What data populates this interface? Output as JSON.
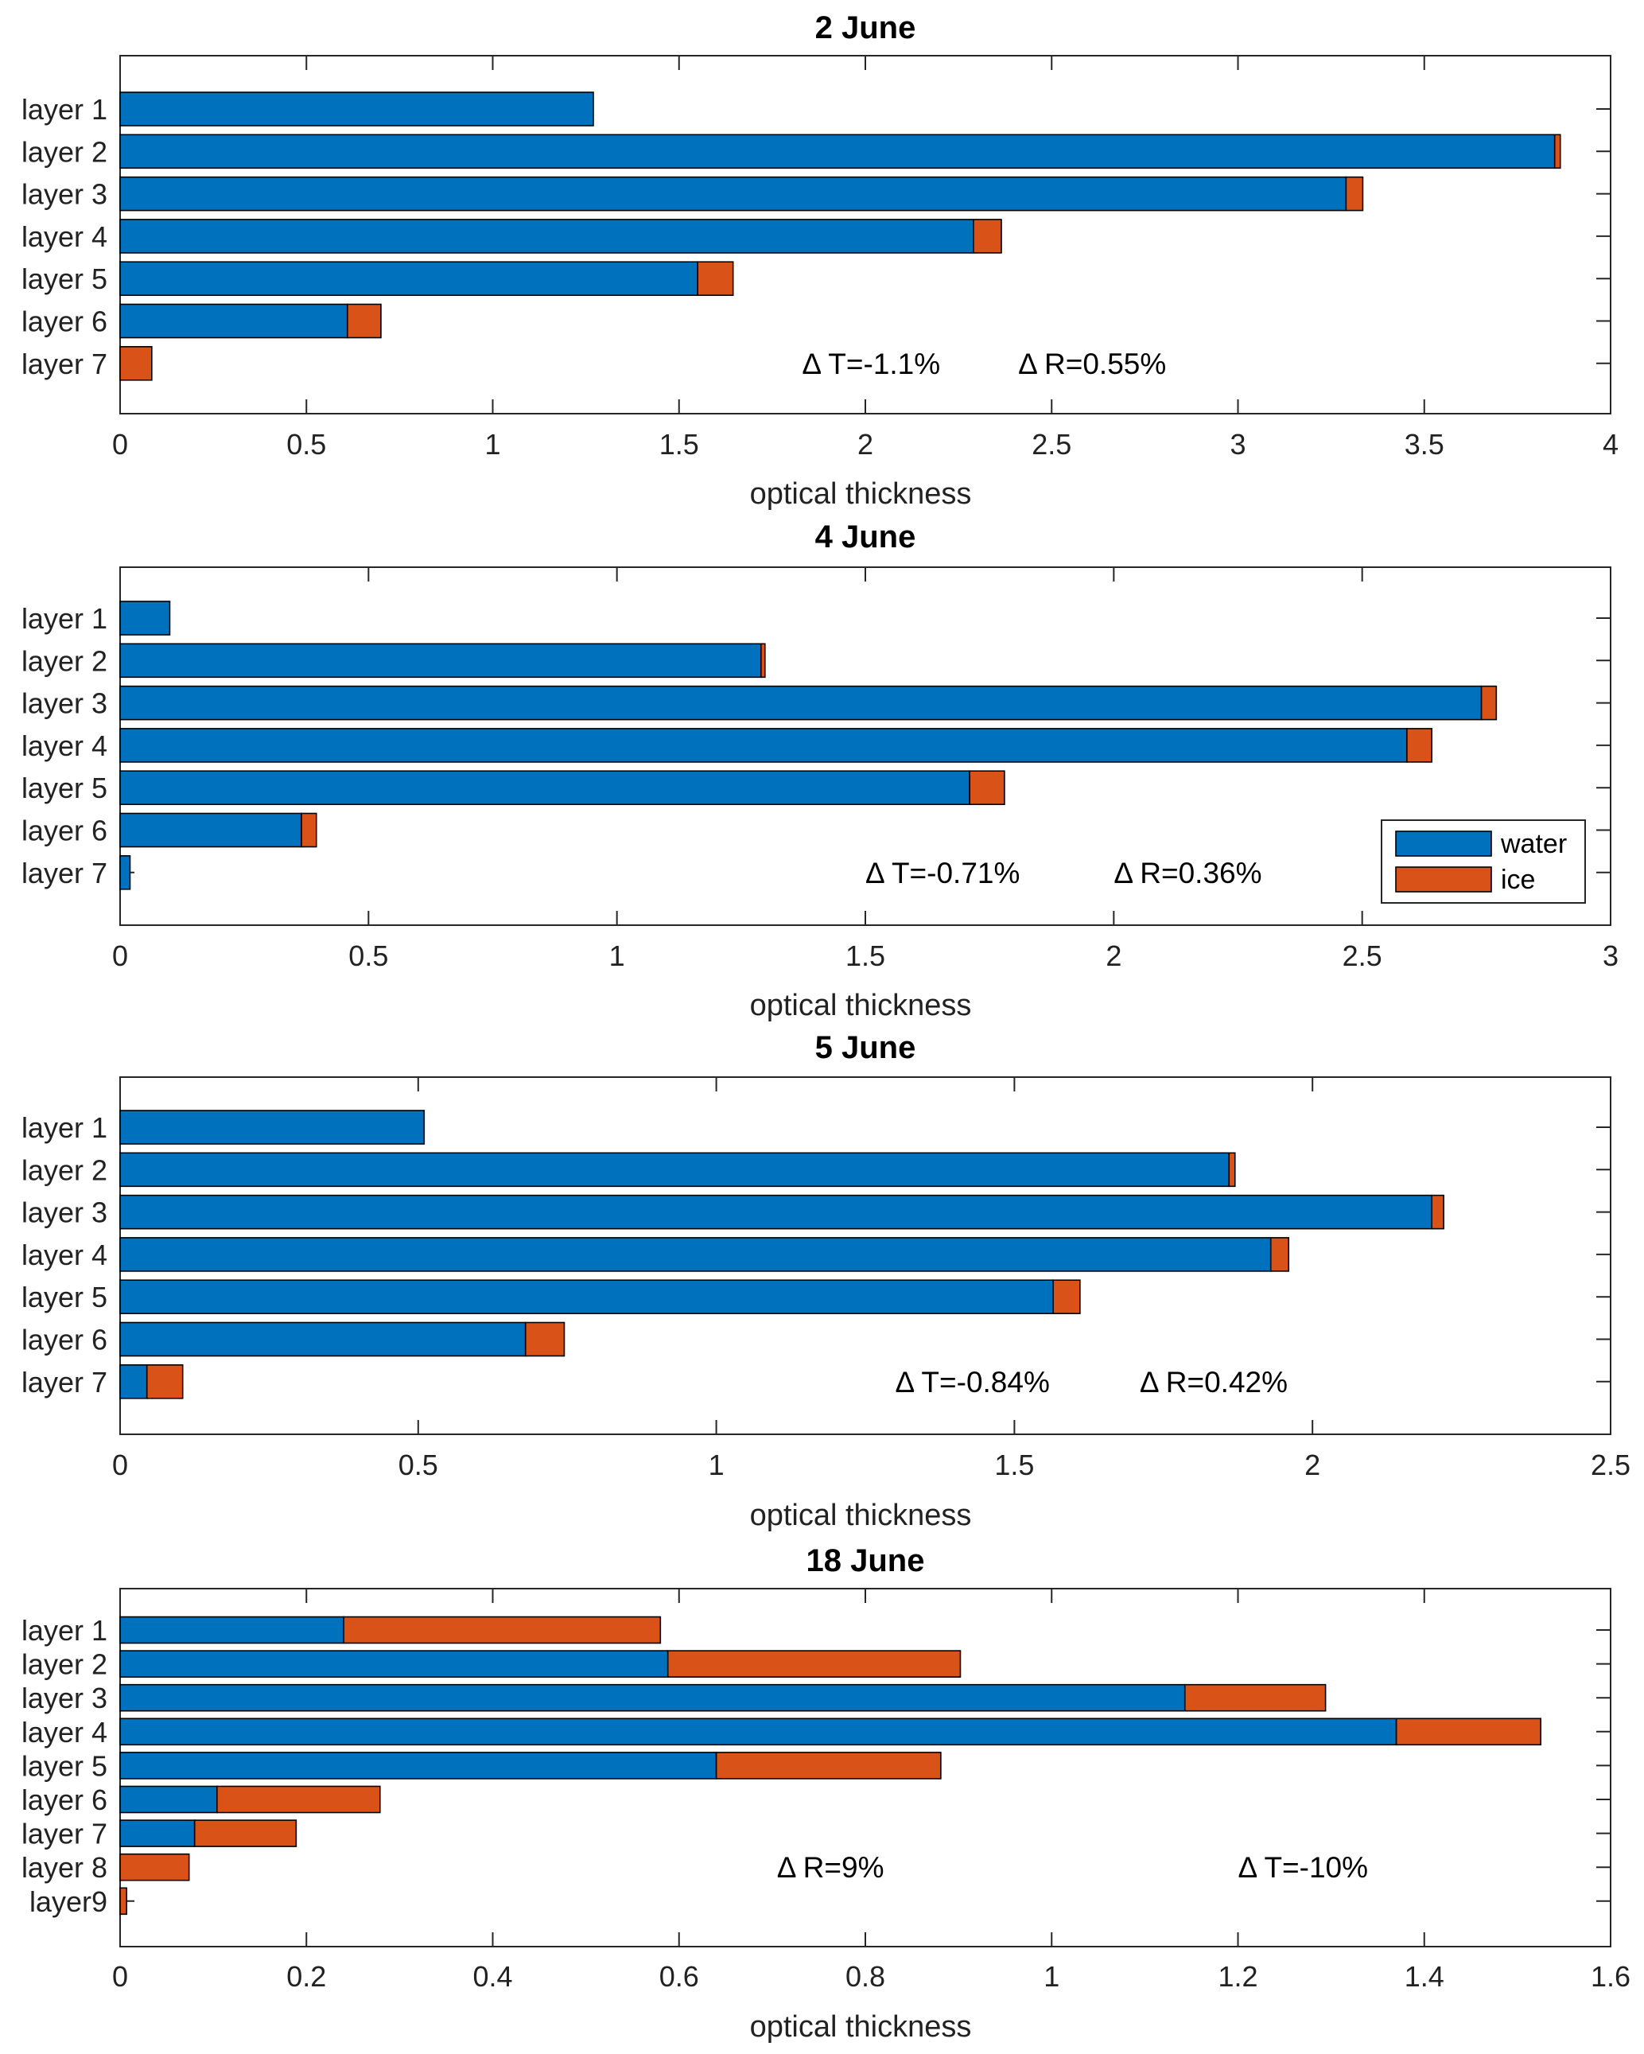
{
  "chart_data": [
    {
      "type": "bar",
      "orientation": "horizontal",
      "stacked": true,
      "title": "2 June",
      "xlabel": "optical thickness",
      "ylabel": "",
      "xlim": [
        0,
        4
      ],
      "xticks": [
        "0",
        "0.5",
        "1",
        "1.5",
        "2",
        "2.5",
        "3",
        "3.5",
        "4"
      ],
      "categories": [
        "layer 1",
        "layer 2",
        "layer 3",
        "layer 4",
        "layer 5",
        "layer 6",
        "layer 7"
      ],
      "series": [
        {
          "name": "water",
          "color": "#0072BD",
          "values": [
            1.27,
            3.85,
            3.29,
            2.29,
            1.55,
            0.61,
            0.0
          ]
        },
        {
          "name": "ice",
          "color": "#D95319",
          "values": [
            0.0,
            0.015,
            0.045,
            0.075,
            0.095,
            0.09,
            0.085
          ]
        }
      ],
      "annotations": [
        {
          "text": "Δ T=-1.1%",
          "x": 1.83,
          "y": 6
        },
        {
          "text": "Δ R=0.55%",
          "x": 2.41,
          "y": 6
        }
      ]
    },
    {
      "type": "bar",
      "orientation": "horizontal",
      "stacked": true,
      "title": "4 June",
      "xlabel": "optical thickness",
      "ylabel": "",
      "xlim": [
        0,
        3
      ],
      "xticks": [
        "0",
        "0.5",
        "1",
        "1.5",
        "2",
        "2.5",
        "3"
      ],
      "categories": [
        "layer 1",
        "layer 2",
        "layer 3",
        "layer 4",
        "layer 5",
        "layer 6",
        "layer 7"
      ],
      "series": [
        {
          "name": "water",
          "color": "#0072BD",
          "values": [
            0.1,
            1.29,
            2.74,
            2.59,
            1.71,
            0.365,
            0.02
          ]
        },
        {
          "name": "ice",
          "color": "#D95319",
          "values": [
            0.0,
            0.008,
            0.03,
            0.05,
            0.07,
            0.03,
            0.0
          ]
        }
      ],
      "annotations": [
        {
          "text": "Δ T=-0.71%",
          "x": 1.5,
          "y": 6
        },
        {
          "text": "Δ R=0.36%",
          "x": 2.0,
          "y": 6
        }
      ],
      "legend": {
        "position": "bottom-right",
        "entries": [
          "water",
          "ice"
        ]
      }
    },
    {
      "type": "bar",
      "orientation": "horizontal",
      "stacked": true,
      "title": "5 June",
      "xlabel": "optical thickness",
      "ylabel": "",
      "xlim": [
        0,
        2.5
      ],
      "xticks": [
        "0",
        "0.5",
        "1",
        "1.5",
        "2",
        "2.5"
      ],
      "categories": [
        "layer 1",
        "layer 2",
        "layer 3",
        "layer 4",
        "layer 5",
        "layer 6",
        "layer 7"
      ],
      "series": [
        {
          "name": "water",
          "color": "#0072BD",
          "values": [
            0.51,
            1.86,
            2.2,
            1.93,
            1.565,
            0.68,
            0.045
          ]
        },
        {
          "name": "ice",
          "color": "#D95319",
          "values": [
            0.0,
            0.01,
            0.02,
            0.03,
            0.045,
            0.065,
            0.06
          ]
        }
      ],
      "annotations": [
        {
          "text": "Δ T=-0.84%",
          "x": 1.3,
          "y": 6
        },
        {
          "text": "Δ R=0.42%",
          "x": 1.71,
          "y": 6
        }
      ]
    },
    {
      "type": "bar",
      "orientation": "horizontal",
      "stacked": true,
      "title": "18 June",
      "xlabel": "optical thickness",
      "ylabel": "",
      "xlim": [
        0,
        1.6
      ],
      "xticks": [
        "0",
        "0.2",
        "0.4",
        "0.6",
        "0.8",
        "1",
        "1.2",
        "1.4",
        "1.6"
      ],
      "categories": [
        "layer 1",
        "layer 2",
        "layer 3",
        "layer 4",
        "layer 5",
        "layer 6",
        "layer 7",
        "layer 8",
        "layer9"
      ],
      "series": [
        {
          "name": "water",
          "color": "#0072BD",
          "values": [
            0.24,
            0.588,
            1.143,
            1.37,
            0.64,
            0.104,
            0.08,
            0.0,
            0.0
          ]
        },
        {
          "name": "ice",
          "color": "#D95319",
          "values": [
            0.34,
            0.314,
            0.151,
            0.155,
            0.241,
            0.175,
            0.109,
            0.074,
            0.007
          ]
        }
      ],
      "annotations": [
        {
          "text": "Δ R=9%",
          "x": 0.705,
          "y": 7
        },
        {
          "text": "Δ T=-10%",
          "x": 1.2,
          "y": 7
        }
      ]
    }
  ]
}
